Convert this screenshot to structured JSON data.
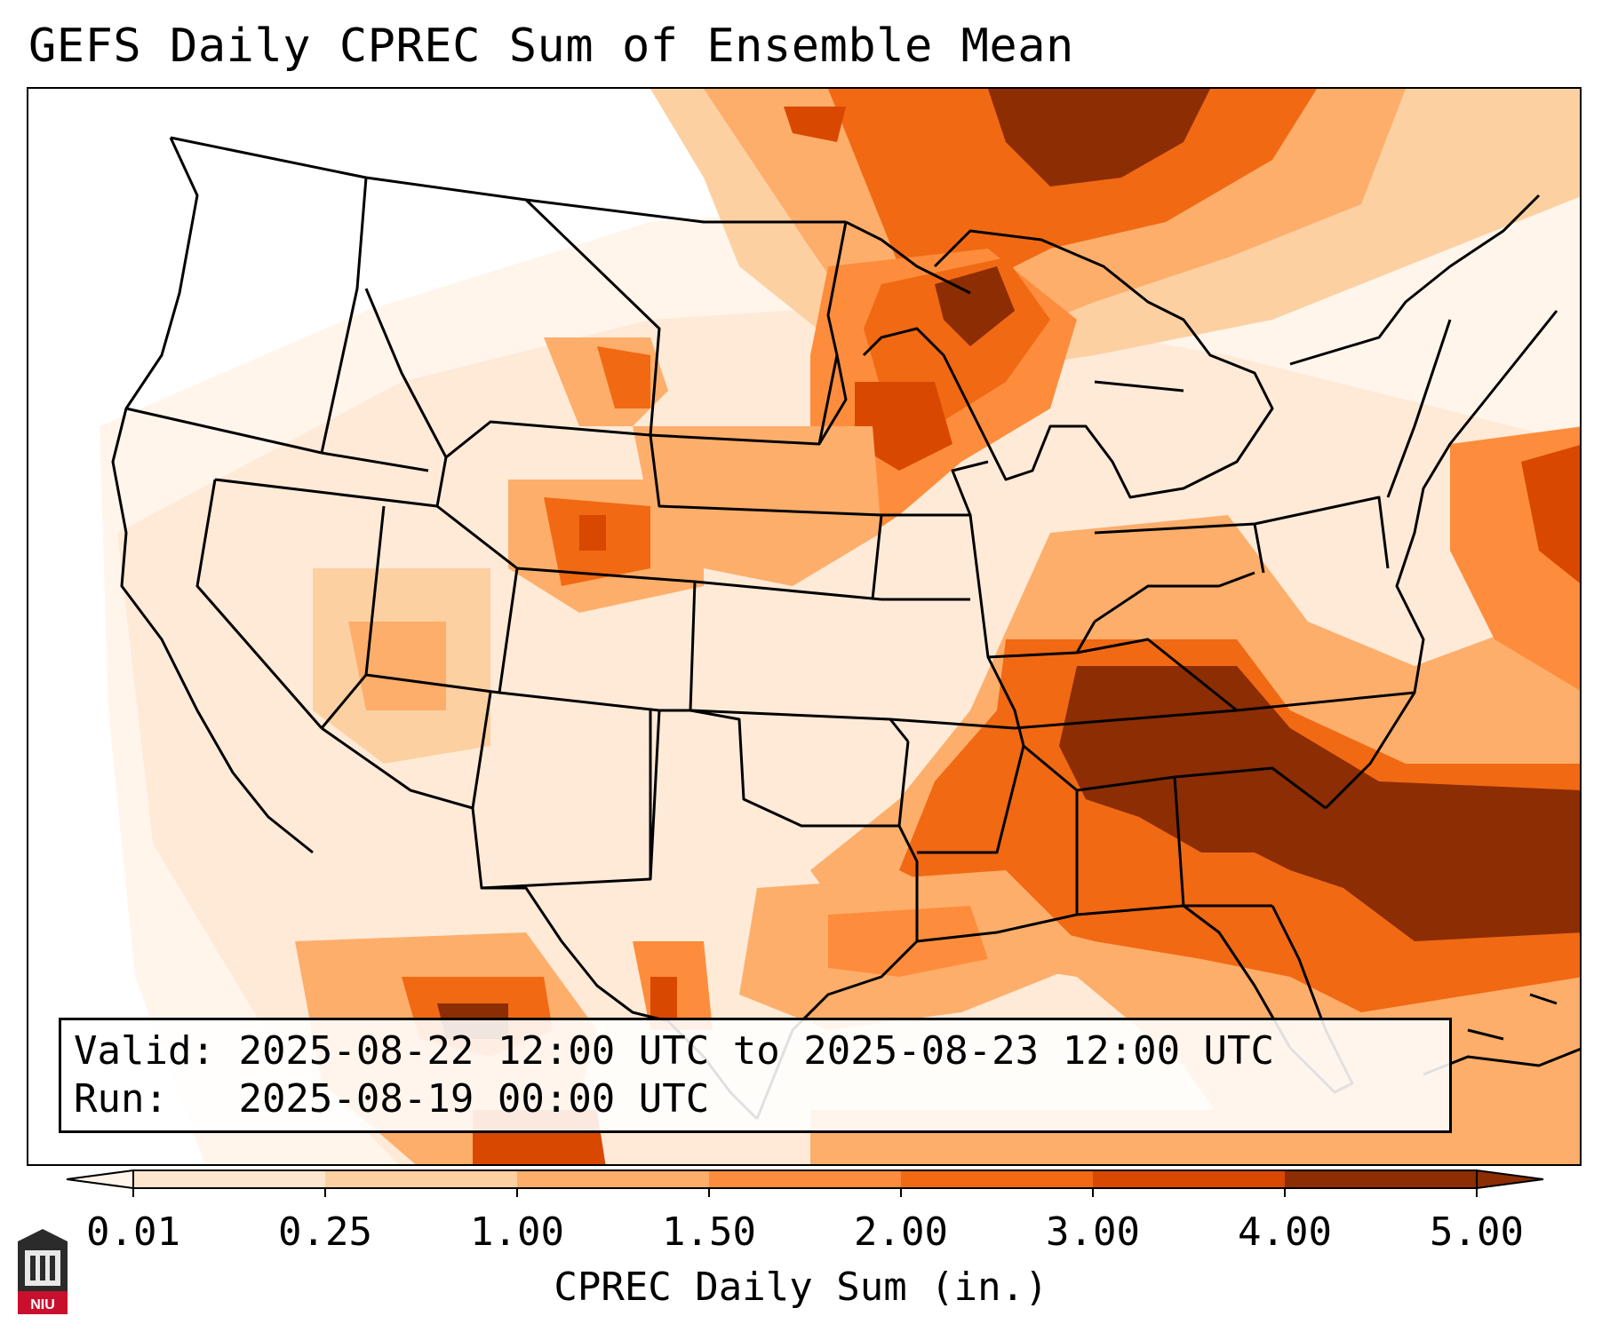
{
  "title": "GEFS Daily CPREC Sum of Ensemble Mean",
  "info": {
    "valid_label": "Valid:",
    "valid_value": "2025-08-22 12:00 UTC to 2025-08-23 12:00 UTC",
    "run_label": "Run:",
    "run_value": "2025-08-19 00:00 UTC"
  },
  "colorbar": {
    "label": "CPREC Daily Sum (in.)",
    "ticks": [
      "0.01",
      "0.25",
      "1.00",
      "1.50",
      "2.00",
      "3.00",
      "4.00",
      "5.00"
    ],
    "colors": [
      "#fff5eb",
      "#fee6ce",
      "#fdd0a2",
      "#fdae6b",
      "#fd8d3c",
      "#f16913",
      "#d94801",
      "#8c2d04"
    ],
    "extend": "both"
  },
  "logo": {
    "text": "NIU",
    "color": "#c8102e"
  }
}
